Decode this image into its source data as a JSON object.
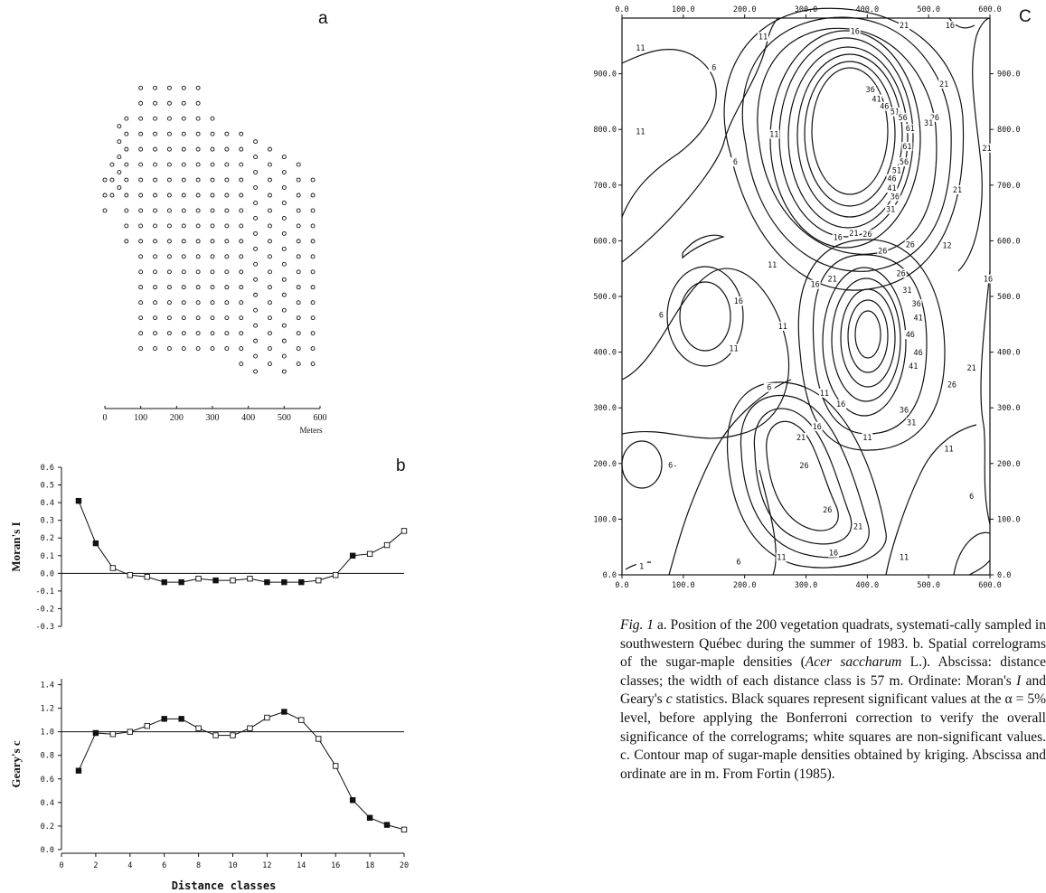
{
  "panel_labels": {
    "a": "a",
    "b": "b",
    "c": "C"
  },
  "chart_data": [
    {
      "type": "scatter",
      "panel": "a",
      "xlabel": "Meters",
      "x_ticks": [
        "0",
        "100",
        "200",
        "300",
        "400",
        "500",
        "600"
      ],
      "xlim": [
        0,
        600
      ],
      "ylim": [
        0,
        1000
      ],
      "grid": false,
      "marker": "open-circle",
      "columns": [
        {
          "x": 0,
          "y_start": 460,
          "y_end": 560
        },
        {
          "x": 20,
          "y_start": 500,
          "y_end": 600
        },
        {
          "x": 40,
          "y_start": 520,
          "y_end": 680
        },
        {
          "x": 60,
          "y_start": 380,
          "y_end": 720
        },
        {
          "x": 100,
          "y_start": 100,
          "y_end": 780
        },
        {
          "x": 140,
          "y_start": 100,
          "y_end": 780
        },
        {
          "x": 180,
          "y_start": 100,
          "y_end": 800
        },
        {
          "x": 220,
          "y_start": 100,
          "y_end": 800
        },
        {
          "x": 260,
          "y_start": 100,
          "y_end": 800
        },
        {
          "x": 300,
          "y_start": 100,
          "y_end": 700
        },
        {
          "x": 340,
          "y_start": 100,
          "y_end": 680
        },
        {
          "x": 380,
          "y_start": 60,
          "y_end": 680
        },
        {
          "x": 420,
          "y_start": 40,
          "y_end": 660
        },
        {
          "x": 460,
          "y_start": 60,
          "y_end": 620
        },
        {
          "x": 500,
          "y_start": 40,
          "y_end": 620
        },
        {
          "x": 540,
          "y_start": 60,
          "y_end": 580
        },
        {
          "x": 580,
          "y_start": 60,
          "y_end": 540
        }
      ]
    },
    {
      "type": "line",
      "panel": "b-upper",
      "ylabel": "Moran's I",
      "x": [
        1,
        2,
        3,
        4,
        5,
        6,
        7,
        8,
        9,
        10,
        11,
        12,
        13,
        14,
        15,
        16,
        17,
        18,
        19,
        20
      ],
      "values": [
        0.41,
        0.17,
        0.03,
        -0.01,
        -0.02,
        -0.05,
        -0.05,
        -0.03,
        -0.04,
        -0.04,
        -0.03,
        -0.05,
        -0.05,
        -0.05,
        -0.04,
        -0.01,
        0.1,
        0.11,
        0.16,
        0.24
      ],
      "significant": [
        true,
        true,
        false,
        false,
        false,
        true,
        true,
        false,
        true,
        false,
        false,
        true,
        true,
        true,
        false,
        false,
        true,
        false,
        false,
        false
      ],
      "y_ticks": [
        "0.6",
        "0.5",
        "0.4",
        "0.3",
        "0.2",
        "0.1",
        "0.0",
        "-0.1",
        "-0.2",
        "-0.3"
      ],
      "ylim": [
        -0.3,
        0.6
      ],
      "xlim": [
        0,
        20
      ],
      "reference_line": 0.0,
      "grid": false
    },
    {
      "type": "line",
      "panel": "b-lower",
      "ylabel": "Geary's c",
      "xlabel": "Distance classes",
      "x": [
        1,
        2,
        3,
        4,
        5,
        6,
        7,
        8,
        9,
        10,
        11,
        12,
        13,
        14,
        15,
        16,
        17,
        18,
        19,
        20
      ],
      "values": [
        0.67,
        0.99,
        0.98,
        1.0,
        1.05,
        1.11,
        1.11,
        1.03,
        0.97,
        0.97,
        1.03,
        1.12,
        1.17,
        1.1,
        0.94,
        0.71,
        0.42,
        0.27,
        0.21,
        0.17
      ],
      "significant": [
        true,
        true,
        false,
        false,
        false,
        true,
        true,
        false,
        false,
        false,
        false,
        false,
        true,
        false,
        false,
        false,
        true,
        true,
        true,
        false
      ],
      "y_ticks": [
        "1.4",
        "1.2",
        "1.0",
        "0.8",
        "0.6",
        "0.4",
        "0.2",
        "0.0"
      ],
      "x_ticks": [
        "0",
        "2",
        "4",
        "6",
        "8",
        "10",
        "12",
        "14",
        "16",
        "18",
        "20"
      ],
      "ylim": [
        0,
        1.45
      ],
      "xlim": [
        0,
        20
      ],
      "reference_line": 1.0,
      "grid": false
    },
    {
      "type": "contour",
      "panel": "c",
      "x_ticks": [
        "0.0",
        "100.0",
        "200.0",
        "300.0",
        "400.0",
        "500.0",
        "600.0"
      ],
      "y_ticks": [
        "0.0",
        "100.0",
        "200.0",
        "300.0",
        "400.0",
        "500.0",
        "600.0",
        "700.0",
        "800.0",
        "900.0"
      ],
      "xlim": [
        0,
        600
      ],
      "ylim": [
        0,
        1000
      ],
      "contour_labels": [
        {
          "text": "11",
          "x": 30,
          "y": 945
        },
        {
          "text": "6",
          "x": 150,
          "y": 910
        },
        {
          "text": "11",
          "x": 230,
          "y": 965
        },
        {
          "text": "16",
          "x": 380,
          "y": 975
        },
        {
          "text": "21",
          "x": 460,
          "y": 985
        },
        {
          "text": "16",
          "x": 535,
          "y": 985
        },
        {
          "text": "21",
          "x": 525,
          "y": 880
        },
        {
          "text": "26",
          "x": 510,
          "y": 820
        },
        {
          "text": "31",
          "x": 500,
          "y": 810
        },
        {
          "text": "36",
          "x": 405,
          "y": 870
        },
        {
          "text": "41",
          "x": 415,
          "y": 853
        },
        {
          "text": "46",
          "x": 428,
          "y": 840
        },
        {
          "text": "51",
          "x": 445,
          "y": 830
        },
        {
          "text": "56",
          "x": 458,
          "y": 820
        },
        {
          "text": "61",
          "x": 470,
          "y": 800
        },
        {
          "text": "61",
          "x": 465,
          "y": 768
        },
        {
          "text": "56",
          "x": 460,
          "y": 740
        },
        {
          "text": "51",
          "x": 448,
          "y": 725
        },
        {
          "text": "46",
          "x": 440,
          "y": 710
        },
        {
          "text": "41",
          "x": 440,
          "y": 693
        },
        {
          "text": "36",
          "x": 445,
          "y": 678
        },
        {
          "text": "31",
          "x": 438,
          "y": 655
        },
        {
          "text": "21",
          "x": 547,
          "y": 690
        },
        {
          "text": "21",
          "x": 595,
          "y": 765
        },
        {
          "text": "11",
          "x": 30,
          "y": 795
        },
        {
          "text": "11",
          "x": 248,
          "y": 790
        },
        {
          "text": "6",
          "x": 185,
          "y": 740
        },
        {
          "text": "16",
          "x": 352,
          "y": 605
        },
        {
          "text": "21",
          "x": 378,
          "y": 612
        },
        {
          "text": "26",
          "x": 400,
          "y": 610
        },
        {
          "text": "26",
          "x": 425,
          "y": 580
        },
        {
          "text": "26",
          "x": 470,
          "y": 592
        },
        {
          "text": "12",
          "x": 530,
          "y": 590
        },
        {
          "text": "11",
          "x": 245,
          "y": 555
        },
        {
          "text": "16",
          "x": 315,
          "y": 520
        },
        {
          "text": "21",
          "x": 343,
          "y": 530
        },
        {
          "text": "26",
          "x": 455,
          "y": 540
        },
        {
          "text": "31",
          "x": 465,
          "y": 510
        },
        {
          "text": "36",
          "x": 480,
          "y": 485
        },
        {
          "text": "41",
          "x": 483,
          "y": 460
        },
        {
          "text": "46",
          "x": 470,
          "y": 430
        },
        {
          "text": "46",
          "x": 483,
          "y": 398
        },
        {
          "text": "41",
          "x": 475,
          "y": 373
        },
        {
          "text": "36",
          "x": 460,
          "y": 295
        },
        {
          "text": "31",
          "x": 472,
          "y": 272
        },
        {
          "text": "26",
          "x": 538,
          "y": 340
        },
        {
          "text": "21",
          "x": 570,
          "y": 370
        },
        {
          "text": "16",
          "x": 597,
          "y": 530
        },
        {
          "text": "16",
          "x": 190,
          "y": 490
        },
        {
          "text": "11",
          "x": 262,
          "y": 445
        },
        {
          "text": "11",
          "x": 182,
          "y": 405
        },
        {
          "text": "6",
          "x": 64,
          "y": 465
        },
        {
          "text": "6",
          "x": 240,
          "y": 335
        },
        {
          "text": "11",
          "x": 330,
          "y": 325
        },
        {
          "text": "16",
          "x": 357,
          "y": 305
        },
        {
          "text": "16",
          "x": 318,
          "y": 265
        },
        {
          "text": "21",
          "x": 292,
          "y": 245
        },
        {
          "text": "26",
          "x": 297,
          "y": 195
        },
        {
          "text": "26",
          "x": 335,
          "y": 115
        },
        {
          "text": "21",
          "x": 385,
          "y": 85
        },
        {
          "text": "11",
          "x": 400,
          "y": 245
        },
        {
          "text": "11",
          "x": 533,
          "y": 225
        },
        {
          "text": "6",
          "x": 570,
          "y": 140
        },
        {
          "text": "6-",
          "x": 83,
          "y": 196
        },
        {
          "text": "6",
          "x": 190,
          "y": 22
        },
        {
          "text": "11",
          "x": 260,
          "y": 30
        },
        {
          "text": "16",
          "x": 345,
          "y": 38
        },
        {
          "text": "11",
          "x": 460,
          "y": 30
        },
        {
          "text": "1",
          "x": 32,
          "y": 14
        }
      ]
    }
  ],
  "caption": {
    "fig_label": "Fig. 1",
    "text_1": " a. Position of the 200 vegetation quadrats, systemati-cally sampled in southwestern Québec during the summer of 1983. b. Spatial correlograms of the sugar-maple densities (",
    "species": "Acer saccharum",
    "text_2": " L.). Abscissa: distance classes; the width of each distance class is 57 m. Ordinate: Moran's ",
    "stat_i": "I",
    "text_3": " and Geary's ",
    "stat_c": "c",
    "text_4": " statistics. Black squares represent significant values at the α = 5% level, before applying the Bonferroni correction to verify the overall significance of the correlograms; white squares are non-significant values. c. Contour map of sugar-maple densities obtained by kriging. Abscissa and ordinate are in m. From Fortin (1985)."
  }
}
